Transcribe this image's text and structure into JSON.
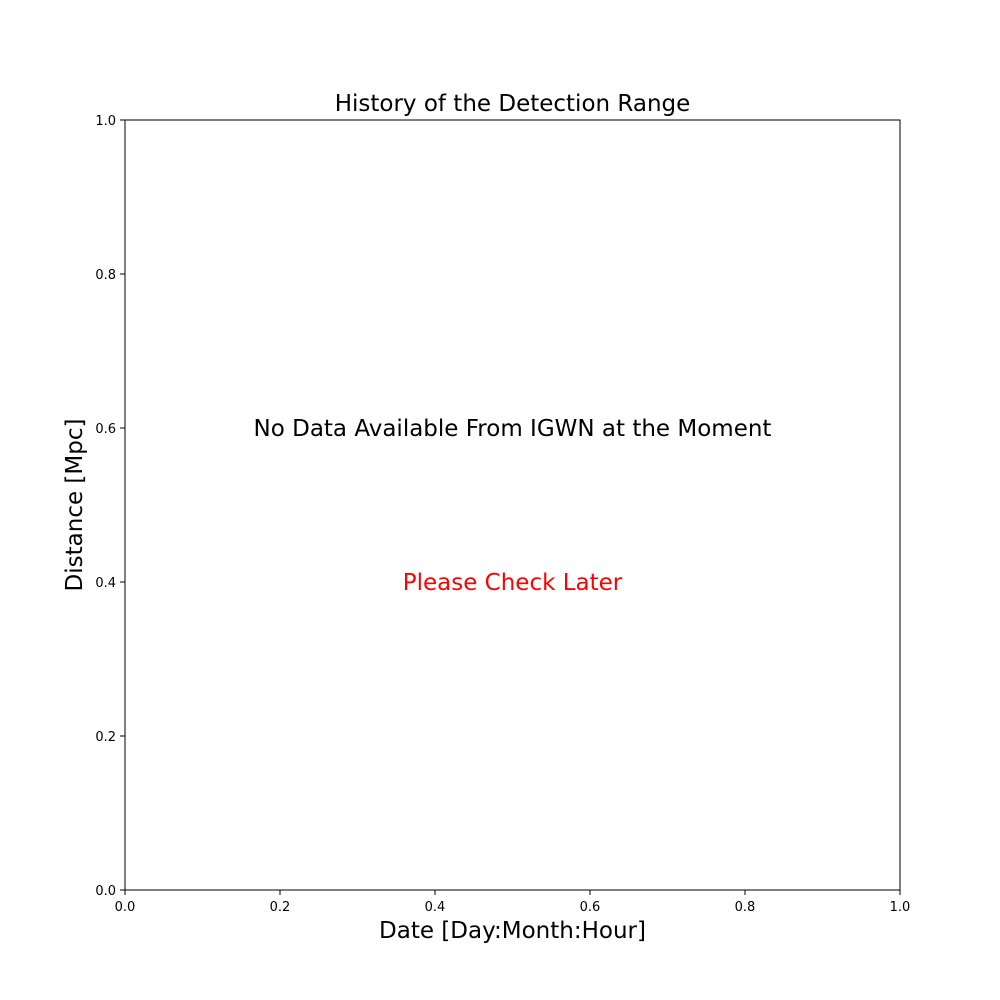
{
  "chart_data": {
    "type": "line",
    "title": "History of the Detection Range",
    "xlabel": "Date [Day:Month:Hour]",
    "ylabel": "Distance [Mpc]",
    "xlim": [
      0.0,
      1.0
    ],
    "ylim": [
      0.0,
      1.0
    ],
    "xticks": [
      "0.0",
      "0.2",
      "0.4",
      "0.6",
      "0.8",
      "1.0"
    ],
    "yticks": [
      "0.0",
      "0.2",
      "0.4",
      "0.6",
      "0.8",
      "1.0"
    ],
    "grid": false,
    "series": [],
    "annotations": [
      {
        "text": "No Data Available From IGWN at the Moment",
        "x": 0.5,
        "y": 0.6,
        "color": "#000000"
      },
      {
        "text": "Please Check Later",
        "x": 0.5,
        "y": 0.4,
        "color": "#ff0000"
      }
    ]
  }
}
